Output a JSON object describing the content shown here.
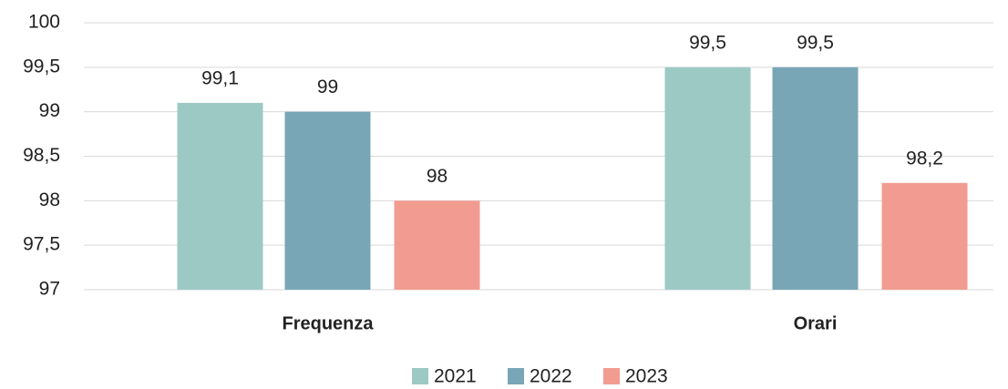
{
  "chart_data": {
    "type": "bar",
    "categories": [
      "Frequenza",
      "Orari"
    ],
    "series": [
      {
        "name": "2021",
        "color": "#9dc9c4",
        "values": [
          99.1,
          99.5
        ],
        "value_labels": [
          "99,1",
          "99,5"
        ]
      },
      {
        "name": "2022",
        "color": "#78a6b6",
        "values": [
          99,
          99.5
        ],
        "value_labels": [
          "99",
          "99,5"
        ]
      },
      {
        "name": "2023",
        "color": "#f29c91",
        "values": [
          98,
          98.2
        ],
        "value_labels": [
          "98",
          "98,2"
        ]
      }
    ],
    "ylim": [
      97,
      100
    ],
    "yticks": [
      97,
      {
        "value": 97.5,
        "label": "97,5"
      },
      98,
      {
        "value": 98.5,
        "label": "98,5"
      },
      99,
      {
        "value": 99.5,
        "label": "99,5"
      },
      100
    ],
    "grid": true,
    "legend": "bottom"
  }
}
